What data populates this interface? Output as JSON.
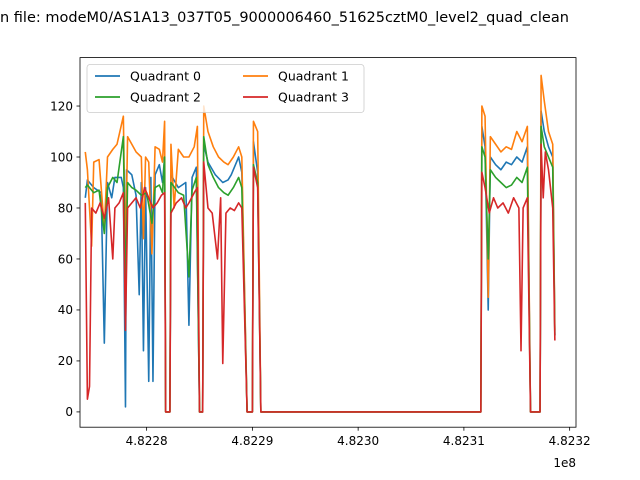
{
  "chart_data": {
    "type": "line",
    "title": "n file: modeM0/AS1A13_037T05_9000006460_51625cztM0_level2_quad_clean",
    "xlabel": "",
    "ylabel": "",
    "x_offset_label": "1e8",
    "xlim": [
      482273700,
      482320600
    ],
    "ylim": [
      -6,
      139
    ],
    "x_ticks": [
      482280000,
      482290000,
      482300000,
      482310000,
      482320000
    ],
    "x_tick_labels": [
      "4.8228",
      "4.8229",
      "4.8230",
      "4.8231",
      "4.8232"
    ],
    "y_ticks": [
      0,
      20,
      40,
      60,
      80,
      100,
      120
    ],
    "y_tick_labels": [
      "0",
      "20",
      "40",
      "60",
      "80",
      "100",
      "120"
    ],
    "legend_position": "top-left",
    "grid": false,
    "series": [
      {
        "name": "Quadrant 0",
        "color": "#1f77b4",
        "points": [
          [
            482274200,
            84
          ],
          [
            482274400,
            91
          ],
          [
            482275000,
            88
          ],
          [
            482275700,
            86
          ],
          [
            482276000,
            27
          ],
          [
            482276300,
            90
          ],
          [
            482276700,
            84
          ],
          [
            482277000,
            92
          ],
          [
            482277600,
            92
          ],
          [
            482277800,
            88
          ],
          [
            482278000,
            2
          ],
          [
            482278100,
            95
          ],
          [
            482278600,
            93
          ],
          [
            482279000,
            85
          ],
          [
            482279300,
            46
          ],
          [
            482279500,
            90
          ],
          [
            482279700,
            24
          ],
          [
            482279900,
            88
          ],
          [
            482280200,
            12
          ],
          [
            482280400,
            92
          ],
          [
            482280600,
            12
          ],
          [
            482280800,
            93
          ],
          [
            482281200,
            97
          ],
          [
            482281500,
            90
          ],
          [
            482281700,
            100
          ],
          [
            482281800,
            0
          ],
          [
            482282200,
            0
          ],
          [
            482282300,
            93
          ],
          [
            482283000,
            88
          ],
          [
            482283700,
            90
          ],
          [
            482284000,
            34
          ],
          [
            482284300,
            92
          ],
          [
            482284700,
            96
          ],
          [
            482285000,
            0
          ],
          [
            482285300,
            0
          ],
          [
            482285400,
            105
          ],
          [
            482285800,
            98
          ],
          [
            482286500,
            93
          ],
          [
            482287200,
            90
          ],
          [
            482287700,
            91
          ],
          [
            482288000,
            93
          ],
          [
            482288700,
            100
          ],
          [
            482289000,
            94
          ],
          [
            482289500,
            0
          ],
          [
            482290000,
            0
          ],
          [
            482290100,
            106
          ],
          [
            482290500,
            94
          ],
          [
            482290800,
            0
          ],
          [
            482311600,
            0
          ],
          [
            482311700,
            112
          ],
          [
            482312000,
            104
          ],
          [
            482312300,
            40
          ],
          [
            482312500,
            100
          ],
          [
            482313000,
            97
          ],
          [
            482313500,
            95
          ],
          [
            482314000,
            98
          ],
          [
            482314500,
            97
          ],
          [
            482315000,
            100
          ],
          [
            482315500,
            98
          ],
          [
            482316000,
            104
          ],
          [
            482316300,
            0
          ],
          [
            482317200,
            0
          ],
          [
            482317300,
            118
          ],
          [
            482317600,
            110
          ],
          [
            482318000,
            104
          ],
          [
            482318400,
            100
          ],
          [
            482318600,
            30
          ]
        ]
      },
      {
        "name": "Quadrant 1",
        "color": "#ff7f0e",
        "points": [
          [
            482274200,
            102
          ],
          [
            482274400,
            95
          ],
          [
            482274800,
            65
          ],
          [
            482275000,
            98
          ],
          [
            482275500,
            99
          ],
          [
            482276000,
            72
          ],
          [
            482276300,
            100
          ],
          [
            482276800,
            103
          ],
          [
            482277200,
            105
          ],
          [
            482277800,
            116
          ],
          [
            482278000,
            60
          ],
          [
            482278200,
            108
          ],
          [
            482278600,
            105
          ],
          [
            482279000,
            102
          ],
          [
            482279500,
            100
          ],
          [
            482279700,
            68
          ],
          [
            482279900,
            100
          ],
          [
            482280200,
            98
          ],
          [
            482280500,
            62
          ],
          [
            482280800,
            104
          ],
          [
            482281200,
            103
          ],
          [
            482281500,
            98
          ],
          [
            482281700,
            114
          ],
          [
            482281800,
            0
          ],
          [
            482282200,
            0
          ],
          [
            482282300,
            105
          ],
          [
            482282600,
            80
          ],
          [
            482283000,
            103
          ],
          [
            482283500,
            100
          ],
          [
            482284000,
            100
          ],
          [
            482284500,
            104
          ],
          [
            482284800,
            112
          ],
          [
            482285000,
            0
          ],
          [
            482285300,
            0
          ],
          [
            482285400,
            120
          ],
          [
            482285800,
            110
          ],
          [
            482286300,
            104
          ],
          [
            482286800,
            100
          ],
          [
            482287300,
            98
          ],
          [
            482287700,
            97
          ],
          [
            482288200,
            100
          ],
          [
            482288700,
            104
          ],
          [
            482289000,
            100
          ],
          [
            482289500,
            0
          ],
          [
            482290000,
            0
          ],
          [
            482290100,
            114
          ],
          [
            482290500,
            110
          ],
          [
            482290800,
            0
          ],
          [
            482311600,
            0
          ],
          [
            482311700,
            120
          ],
          [
            482312000,
            116
          ],
          [
            482312300,
            45
          ],
          [
            482312500,
            108
          ],
          [
            482313000,
            105
          ],
          [
            482313500,
            102
          ],
          [
            482314000,
            104
          ],
          [
            482314500,
            103
          ],
          [
            482315000,
            110
          ],
          [
            482315500,
            106
          ],
          [
            482316000,
            112
          ],
          [
            482316300,
            0
          ],
          [
            482317200,
            0
          ],
          [
            482317300,
            132
          ],
          [
            482317600,
            122
          ],
          [
            482318000,
            110
          ],
          [
            482318400,
            105
          ],
          [
            482318600,
            32
          ]
        ]
      },
      {
        "name": "Quadrant 2",
        "color": "#2ca02c",
        "points": [
          [
            482274200,
            88
          ],
          [
            482274400,
            89
          ],
          [
            482275000,
            86
          ],
          [
            482275500,
            87
          ],
          [
            482276000,
            70
          ],
          [
            482276300,
            88
          ],
          [
            482276800,
            92
          ],
          [
            482277200,
            90
          ],
          [
            482277800,
            108
          ],
          [
            482278000,
            48
          ],
          [
            482278200,
            90
          ],
          [
            482278600,
            88
          ],
          [
            482279000,
            87
          ],
          [
            482279500,
            85
          ],
          [
            482280000,
            86
          ],
          [
            482280500,
            74
          ],
          [
            482280800,
            88
          ],
          [
            482281200,
            89
          ],
          [
            482281500,
            86
          ],
          [
            482281700,
            100
          ],
          [
            482281800,
            0
          ],
          [
            482282200,
            0
          ],
          [
            482282300,
            90
          ],
          [
            482283000,
            86
          ],
          [
            482283500,
            85
          ],
          [
            482284000,
            53
          ],
          [
            482284300,
            87
          ],
          [
            482284700,
            92
          ],
          [
            482285000,
            0
          ],
          [
            482285300,
            0
          ],
          [
            482285400,
            108
          ],
          [
            482285800,
            97
          ],
          [
            482286300,
            92
          ],
          [
            482286800,
            88
          ],
          [
            482287300,
            86
          ],
          [
            482287700,
            85
          ],
          [
            482288200,
            88
          ],
          [
            482288700,
            92
          ],
          [
            482289000,
            88
          ],
          [
            482289500,
            0
          ],
          [
            482290000,
            0
          ],
          [
            482290100,
            97
          ],
          [
            482290500,
            90
          ],
          [
            482290800,
            0
          ],
          [
            482311600,
            0
          ],
          [
            482311700,
            104
          ],
          [
            482312000,
            100
          ],
          [
            482312300,
            60
          ],
          [
            482312500,
            95
          ],
          [
            482313000,
            92
          ],
          [
            482313500,
            90
          ],
          [
            482314000,
            88
          ],
          [
            482314500,
            89
          ],
          [
            482315000,
            92
          ],
          [
            482315500,
            90
          ],
          [
            482316000,
            96
          ],
          [
            482316300,
            0
          ],
          [
            482317200,
            0
          ],
          [
            482317300,
            112
          ],
          [
            482317600,
            104
          ],
          [
            482318000,
            100
          ],
          [
            482318400,
            96
          ],
          [
            482318600,
            30
          ]
        ]
      },
      {
        "name": "Quadrant 3",
        "color": "#d62728",
        "points": [
          [
            482274200,
            82
          ],
          [
            482274400,
            5
          ],
          [
            482274600,
            10
          ],
          [
            482274800,
            80
          ],
          [
            482275200,
            78
          ],
          [
            482275600,
            82
          ],
          [
            482276000,
            76
          ],
          [
            482276400,
            84
          ],
          [
            482276800,
            60
          ],
          [
            482277000,
            80
          ],
          [
            482277400,
            82
          ],
          [
            482277800,
            86
          ],
          [
            482278000,
            32
          ],
          [
            482278200,
            80
          ],
          [
            482278600,
            82
          ],
          [
            482279000,
            84
          ],
          [
            482279400,
            80
          ],
          [
            482279800,
            88
          ],
          [
            482280200,
            84
          ],
          [
            482280600,
            80
          ],
          [
            482281000,
            82
          ],
          [
            482281400,
            85
          ],
          [
            482281700,
            86
          ],
          [
            482281800,
            0
          ],
          [
            482282200,
            0
          ],
          [
            482282300,
            78
          ],
          [
            482282800,
            82
          ],
          [
            482283300,
            84
          ],
          [
            482283700,
            80
          ],
          [
            482284000,
            82
          ],
          [
            482284500,
            86
          ],
          [
            482284800,
            88
          ],
          [
            482285000,
            0
          ],
          [
            482285300,
            0
          ],
          [
            482285400,
            98
          ],
          [
            482285800,
            80
          ],
          [
            482286200,
            78
          ],
          [
            482286700,
            60
          ],
          [
            482287000,
            84
          ],
          [
            482287200,
            19
          ],
          [
            482287500,
            78
          ],
          [
            482287900,
            80
          ],
          [
            482288300,
            79
          ],
          [
            482288700,
            82
          ],
          [
            482289000,
            80
          ],
          [
            482289500,
            0
          ],
          [
            482290000,
            0
          ],
          [
            482290100,
            96
          ],
          [
            482290500,
            88
          ],
          [
            482290800,
            0
          ],
          [
            482311600,
            0
          ],
          [
            482311700,
            94
          ],
          [
            482312000,
            88
          ],
          [
            482312400,
            78
          ],
          [
            482312800,
            84
          ],
          [
            482313200,
            80
          ],
          [
            482313700,
            82
          ],
          [
            482314200,
            78
          ],
          [
            482314700,
            84
          ],
          [
            482315200,
            80
          ],
          [
            482315400,
            24
          ],
          [
            482315600,
            80
          ],
          [
            482316000,
            84
          ],
          [
            482316300,
            0
          ],
          [
            482317200,
            0
          ],
          [
            482317300,
            105
          ],
          [
            482317500,
            84
          ],
          [
            482317700,
            102
          ],
          [
            482318000,
            95
          ],
          [
            482318400,
            80
          ],
          [
            482318600,
            28
          ]
        ]
      }
    ]
  }
}
